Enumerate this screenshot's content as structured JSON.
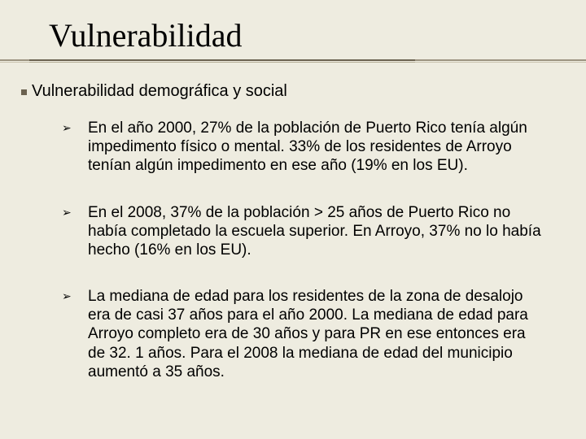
{
  "colors": {
    "background": "#eeece0",
    "title_text": "#000000",
    "body_text": "#000000",
    "underline_dark": "#6b6250",
    "underline_light": "#9c9481",
    "underline_shadow_dark": "#b4ac96",
    "underline_shadow_light": "#c9c3af",
    "subtitle_marker": "#6b6250"
  },
  "typography": {
    "title_family": "Times New Roman",
    "title_size_pt": 40,
    "body_family": "Arial",
    "subtitle_size_pt": 20,
    "bullet_size_pt": 19
  },
  "title": "Vulnerabilidad",
  "subtitle": "Vulnerabilidad demográfica y social",
  "bullet_marker": "➢",
  "bullets": [
    "En el año 2000, 27% de la población de Puerto Rico tenía algún impedimento físico o mental.  33% de los residentes de Arroyo tenían algún impedimento  en ese año (19% en los EU).",
    "En el 2008, 37% de la población > 25 años de Puerto Rico no había completado la escuela superior.  En Arroyo, 37% no lo había hecho (16% en los EU).",
    "La mediana de edad para los residentes de la zona de desalojo era de casi 37 años para el año 2000.  La mediana de edad para Arroyo completo era de 30 años y para PR en ese entonces era de 32. 1 años.   Para el 2008 la mediana de edad del municipio aumentó a 35 años."
  ]
}
